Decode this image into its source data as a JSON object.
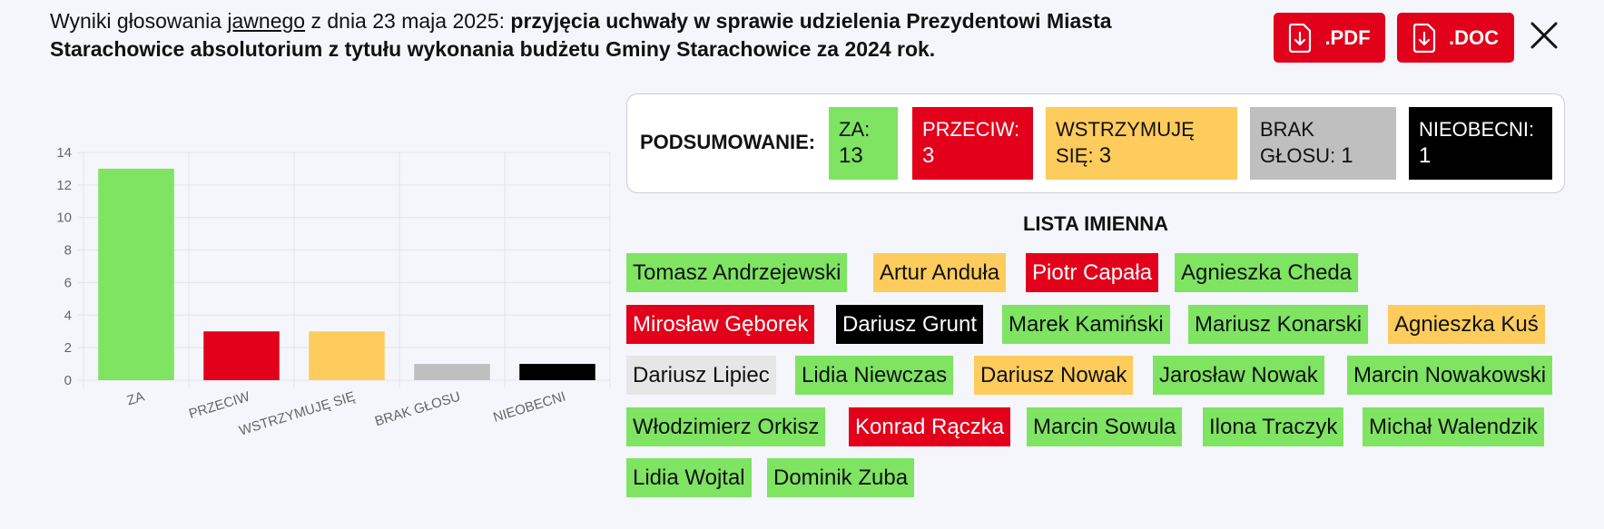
{
  "header": {
    "title_prefix": "Wyniki głosowania ",
    "title_underlined": "jawnego",
    "title_date": " z dnia 23 maja 2025: ",
    "title_bold": "przyjęcia uchwały w sprawie udzielenia Prezydentowi Miasta Starachowice absolutorium z tytułu wykonania budżetu Gminy Starachowice za 2024 rok.",
    "pdf_label": ".PDF",
    "doc_label": ".DOC"
  },
  "summary": {
    "label": "PODSUMOWANIE:",
    "items": [
      {
        "label": "ZA:",
        "count": "13"
      },
      {
        "label": "PRZECIW:",
        "count": "3"
      },
      {
        "label": "WSTRZYMUJĘ SIĘ:",
        "count": "3"
      },
      {
        "label": "BRAK GŁOSU:",
        "count": "1"
      },
      {
        "label": "NIEOBECNI:",
        "count": "1"
      }
    ]
  },
  "list": {
    "title": "LISTA IMIENNA",
    "people": [
      {
        "name": "Tomasz Andrzejewski",
        "vote": "za"
      },
      {
        "name": "Artur Anduła",
        "vote": "wstrzymuje"
      },
      {
        "name": "Piotr Capała",
        "vote": "przeciw"
      },
      {
        "name": "Agnieszka Cheda",
        "vote": "za"
      },
      {
        "name": "Mirosław Gęborek",
        "vote": "przeciw"
      },
      {
        "name": "Dariusz Grunt",
        "vote": "nieobecny"
      },
      {
        "name": "Marek Kamiński",
        "vote": "za"
      },
      {
        "name": "Mariusz Konarski",
        "vote": "za"
      },
      {
        "name": "Agnieszka Kuś",
        "vote": "wstrzymuje"
      },
      {
        "name": "Dariusz Lipiec",
        "vote": "brak"
      },
      {
        "name": "Lidia Niewczas",
        "vote": "za"
      },
      {
        "name": "Dariusz Nowak",
        "vote": "wstrzymuje"
      },
      {
        "name": "Jarosław Nowak",
        "vote": "za"
      },
      {
        "name": "Marcin Nowakowski",
        "vote": "za"
      },
      {
        "name": "Włodzimierz Orkisz",
        "vote": "za"
      },
      {
        "name": "Konrad Rączka",
        "vote": "przeciw"
      },
      {
        "name": "Marcin Sowula",
        "vote": "za"
      },
      {
        "name": "Ilona Traczyk",
        "vote": "za"
      },
      {
        "name": "Michał Walendzik",
        "vote": "za"
      },
      {
        "name": "Lidia Wojtal",
        "vote": "za"
      },
      {
        "name": "Dominik Zuba",
        "vote": "za"
      }
    ]
  },
  "colors": {
    "za": "#7ee462",
    "przeciw": "#e2001a",
    "wstrzymuje": "#fecc5c",
    "brak": "#bfbfbf",
    "nieobecny": "#000000"
  },
  "chart_data": {
    "type": "bar",
    "categories": [
      "ZA",
      "PRZECIW",
      "WSTRZYMUJĘ SIĘ",
      "BRAK GŁOSU",
      "NIEOBECNI"
    ],
    "values": [
      13,
      3,
      3,
      1,
      1
    ],
    "bar_colors": [
      "#7ee462",
      "#e2001a",
      "#fecc5c",
      "#bfbfbf",
      "#000000"
    ],
    "yticks": [
      "0",
      "2",
      "4",
      "6",
      "8",
      "10",
      "12",
      "14"
    ],
    "ylim": [
      0,
      14
    ],
    "grid": true,
    "legend": "none"
  }
}
